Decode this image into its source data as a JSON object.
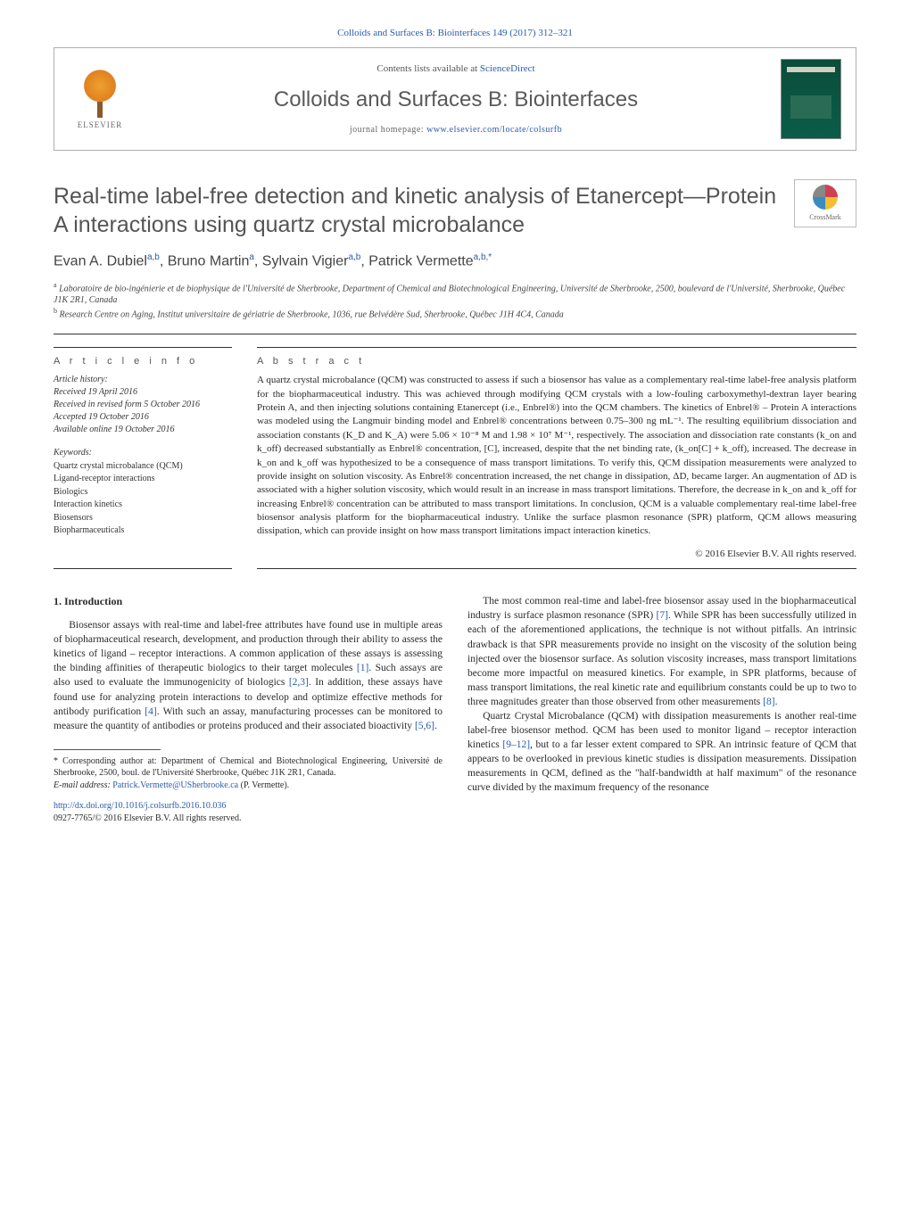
{
  "header": {
    "top_link": "Colloids and Surfaces B: Biointerfaces 149 (2017) 312–321",
    "contents_line_prefix": "Contents lists available at ",
    "contents_line_link": "ScienceDirect",
    "journal_title": "Colloids and Surfaces B: Biointerfaces",
    "homepage_prefix": "journal homepage: ",
    "homepage_link": "www.elsevier.com/locate/colsurfb",
    "elsevier_label": "ELSEVIER",
    "crossmark_label": "CrossMark"
  },
  "article": {
    "title": "Real-time label-free detection and kinetic analysis of Etanercept—Protein A interactions using quartz crystal microbalance",
    "authors_html": "Evan A. Dubiel<sup>a,b</sup>, Bruno Martin<sup>a</sup>, Sylvain Vigier<sup>a,b</sup>, Patrick Vermette<sup>a,b,*</sup>",
    "affiliations": {
      "a": "Laboratoire de bio-ingénierie et de biophysique de l'Université de Sherbrooke, Department of Chemical and Biotechnological Engineering, Université de Sherbrooke, 2500, boulevard de l'Université, Sherbrooke, Québec J1K 2R1, Canada",
      "b": "Research Centre on Aging, Institut universitaire de gériatrie de Sherbrooke, 1036, rue Belvédère Sud, Sherbrooke, Québec J1H 4C4, Canada"
    }
  },
  "info": {
    "section_label": "a r t i c l e   i n f o",
    "history_head": "Article history:",
    "history": [
      "Received 19 April 2016",
      "Received in revised form 5 October 2016",
      "Accepted 19 October 2016",
      "Available online 19 October 2016"
    ],
    "keywords_head": "Keywords:",
    "keywords": [
      "Quartz crystal microbalance (QCM)",
      "Ligand-receptor interactions",
      "Biologics",
      "Interaction kinetics",
      "Biosensors",
      "Biopharmaceuticals"
    ]
  },
  "abstract": {
    "section_label": "a b s t r a c t",
    "text": "A quartz crystal microbalance (QCM) was constructed to assess if such a biosensor has value as a complementary real-time label-free analysis platform for the biopharmaceutical industry. This was achieved through modifying QCM crystals with a low-fouling carboxymethyl-dextran layer bearing Protein A, and then injecting solutions containing Etanercept (i.e., Enbrel®) into the QCM chambers. The kinetics of Enbrel® – Protein A interactions was modeled using the Langmuir binding model and Enbrel® concentrations between 0.75–300 ng mL⁻¹. The resulting equilibrium dissociation and association constants (K_D and K_A) were 5.06 × 10⁻⁸ M and 1.98 × 10⁷ M⁻¹, respectively. The association and dissociation rate constants (k_on and k_off) decreased substantially as Enbrel® concentration, [C], increased, despite that the net binding rate, (k_on[C] + k_off), increased. The decrease in k_on and k_off was hypothesized to be a consequence of mass transport limitations. To verify this, QCM dissipation measurements were analyzed to provide insight on solution viscosity. As Enbrel® concentration increased, the net change in dissipation, ΔD, became larger. An augmentation of ΔD is associated with a higher solution viscosity, which would result in an increase in mass transport limitations. Therefore, the decrease in k_on and k_off for increasing Enbrel® concentration can be attributed to mass transport limitations. In conclusion, QCM is a valuable complementary real-time label-free biosensor analysis platform for the biopharmaceutical industry. Unlike the surface plasmon resonance (SPR) platform, QCM allows measuring dissipation, which can provide insight on how mass transport limitations impact interaction kinetics.",
    "copyright": "© 2016 Elsevier B.V. All rights reserved."
  },
  "body": {
    "intro_head": "1. Introduction",
    "p1": "Biosensor assays with real-time and label-free attributes have found use in multiple areas of biopharmaceutical research, development, and production through their ability to assess the kinetics of ligand – receptor interactions. A common application of these assays is assessing the binding affinities of therapeutic biologics to their target molecules [1]. Such assays are also used to evaluate the immunogenicity of biologics [2,3]. In addition, these assays have found use for analyzing protein interactions to develop and optimize effective methods for antibody purification [4]. With such an assay, manufacturing processes can be monitored to measure the quantity of antibodies or proteins produced and their associated bioactivity [5,6].",
    "p2": "The most common real-time and label-free biosensor assay used in the biopharmaceutical industry is surface plasmon resonance (SPR) [7]. While SPR has been successfully utilized in each of the aforementioned applications, the technique is not without pitfalls. An intrinsic drawback is that SPR measurements provide no insight on the viscosity of the solution being injected over the biosensor surface. As solution viscosity increases, mass transport limitations become more impactful on measured kinetics. For example, in SPR platforms, because of mass transport limitations, the real kinetic rate and equilibrium constants could be up to two to three magnitudes greater than those observed from other measurements [8].",
    "p3": "Quartz Crystal Microbalance (QCM) with dissipation measurements is another real-time label-free biosensor method. QCM has been used to monitor ligand – receptor interaction kinetics [9–12], but to a far lesser extent compared to SPR. An intrinsic feature of QCM that appears to be overlooked in previous kinetic studies is dissipation measurements. Dissipation measurements in QCM, defined as the \"half-bandwidth at half maximum\" of the resonance curve divided by the maximum frequency of the resonance"
  },
  "footnotes": {
    "corresponding": "* Corresponding author at: Department of Chemical and Biotechnological Engineering, Université de Sherbrooke, 2500, boul. de l'Université Sherbrooke, Québec J1K 2R1, Canada.",
    "email_label": "E-mail address: ",
    "email": "Patrick.Vermette@USherbrooke.ca",
    "email_suffix": " (P. Vermette).",
    "doi": "http://dx.doi.org/10.1016/j.colsurfb.2016.10.036",
    "issn_line": "0927-7765/© 2016 Elsevier B.V. All rights reserved."
  },
  "refs": {
    "r1": "[1]",
    "r23": "[2,3]",
    "r4": "[4]",
    "r56": "[5,6]",
    "r7": "[7]",
    "r8": "[8]",
    "r912": "[9–12]"
  }
}
